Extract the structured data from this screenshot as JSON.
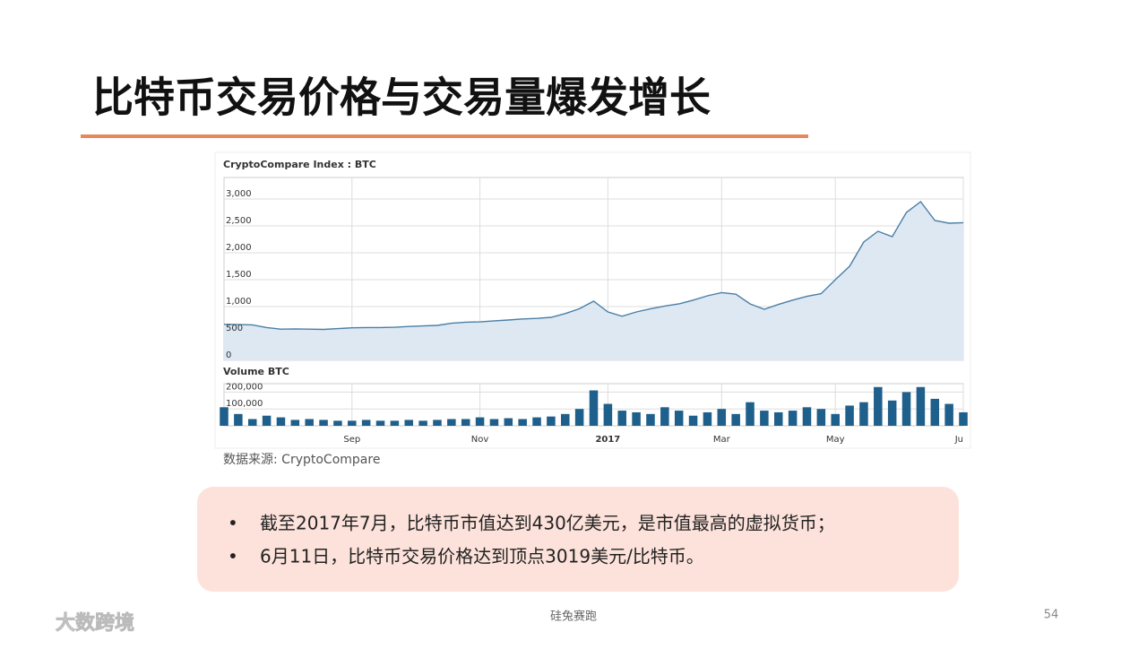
{
  "slide": {
    "title": "比特币交易价格与交易量爆发增长",
    "source": "数据来源: CryptoCompare",
    "bullets": [
      "截至2017年7月，比特币市值达到430亿美元，是市值最高的虚拟货币；",
      "6月11日，比特币交易价格达到顶点3019美元/比特币。"
    ],
    "footer": "硅兔赛跑",
    "page_number": "54",
    "watermark": "大数跨境"
  },
  "chart_data": [
    {
      "type": "area",
      "title": "CryptoCompare Index : BTC",
      "color": "#4a7fa5",
      "fill": "#dde8f3",
      "ylim": [
        0,
        3400
      ],
      "yticks": [
        0,
        500,
        {
          "value": 1000,
          "label": "1,000"
        },
        {
          "value": 1500,
          "label": "1,500"
        },
        {
          "value": 2000,
          "label": "2,000"
        },
        {
          "value": 2500,
          "label": "2,500"
        },
        {
          "value": 3000,
          "label": "3,000"
        }
      ],
      "grid": true,
      "values": [
        670,
        665,
        660,
        610,
        580,
        585,
        580,
        575,
        590,
        605,
        610,
        610,
        615,
        630,
        640,
        650,
        690,
        710,
        715,
        735,
        750,
        770,
        780,
        800,
        870,
        960,
        1100,
        900,
        820,
        900,
        960,
        1010,
        1050,
        1120,
        1200,
        1260,
        1230,
        1050,
        950,
        1040,
        1120,
        1190,
        1240,
        1500,
        1750,
        2200,
        2400,
        2300,
        2750,
        2950,
        2600,
        2550,
        2560
      ]
    },
    {
      "type": "bar",
      "title": "Volume BTC",
      "color": "#1f5f8b",
      "ylim": [
        0,
        250000
      ],
      "yticks": [
        {
          "value": 100000,
          "label": "100,000"
        },
        {
          "value": 200000,
          "label": "200,000"
        }
      ],
      "grid": true,
      "categories": [
        null,
        null,
        null,
        null,
        null,
        null,
        null,
        null,
        null,
        "Sep",
        null,
        null,
        null,
        null,
        null,
        null,
        null,
        null,
        "Nov",
        null,
        null,
        null,
        null,
        null,
        null,
        null,
        null,
        "2017",
        null,
        null,
        null,
        null,
        null,
        null,
        null,
        "Mar",
        null,
        null,
        null,
        null,
        null,
        null,
        null,
        "May",
        null,
        null,
        null,
        null,
        null,
        null,
        null,
        null,
        "Ju"
      ],
      "values": [
        110000,
        70000,
        40000,
        60000,
        50000,
        35000,
        40000,
        35000,
        30000,
        30000,
        35000,
        30000,
        30000,
        35000,
        30000,
        35000,
        40000,
        40000,
        50000,
        40000,
        45000,
        40000,
        50000,
        55000,
        70000,
        100000,
        210000,
        130000,
        90000,
        80000,
        70000,
        110000,
        90000,
        60000,
        80000,
        100000,
        70000,
        140000,
        90000,
        80000,
        90000,
        110000,
        100000,
        70000,
        120000,
        140000,
        230000,
        150000,
        200000,
        230000,
        160000,
        130000,
        80000
      ]
    }
  ]
}
